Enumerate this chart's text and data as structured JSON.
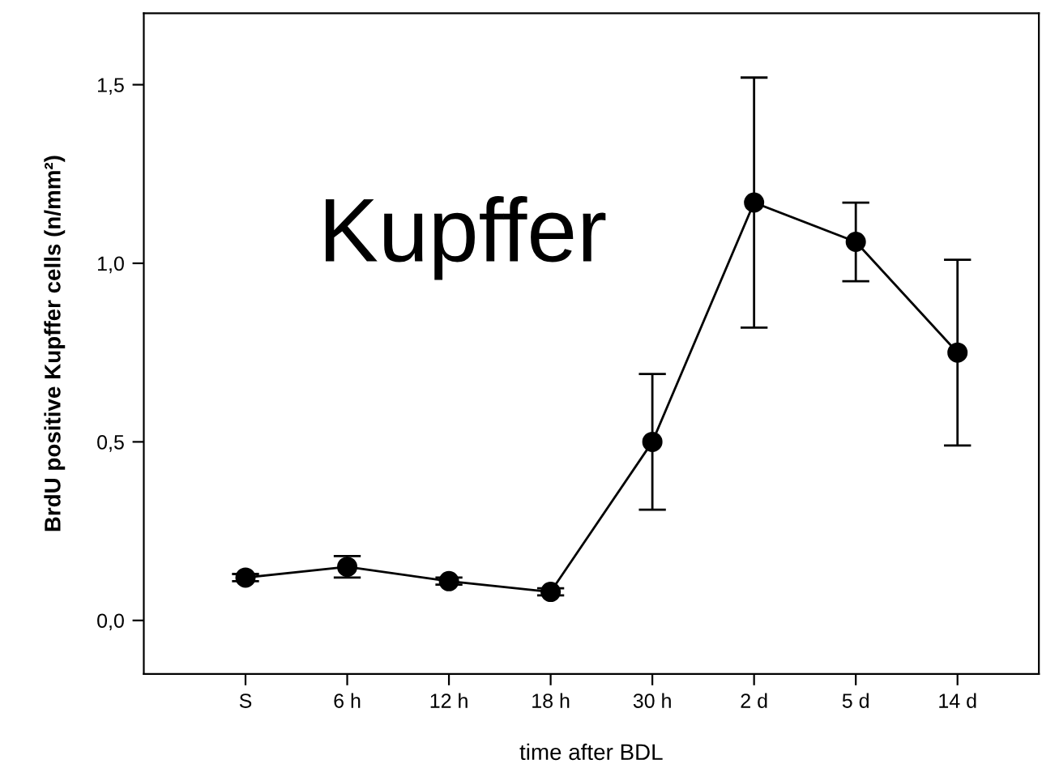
{
  "chart_data": {
    "type": "line",
    "xlabel": "time after BDL",
    "ylabel": "BrdU positive Kupffer cells (n/mm²)",
    "categories": [
      "S",
      "6 h",
      "12 h",
      "18 h",
      "30 h",
      "2 d",
      "5 d",
      "14 d"
    ],
    "series": [
      {
        "color": "#000000",
        "values": [
          0.12,
          0.15,
          0.11,
          0.08,
          0.5,
          1.17,
          1.06,
          0.75
        ],
        "errors": [
          0.01,
          0.03,
          0.01,
          0.01,
          0.19,
          0.35,
          0.11,
          0.26
        ]
      }
    ],
    "ylim": [
      -0.15,
      1.7
    ],
    "yticks": [
      {
        "value": 0,
        "label": "0,0"
      },
      {
        "value": 0.5,
        "label": "0,5"
      },
      {
        "value": 1.0,
        "label": "1,0"
      },
      {
        "value": 1.5,
        "label": "1,5"
      }
    ],
    "annotations": [
      "Kupffer"
    ],
    "marker": "circle",
    "line_style": "solid",
    "grid": false,
    "legend": false
  }
}
